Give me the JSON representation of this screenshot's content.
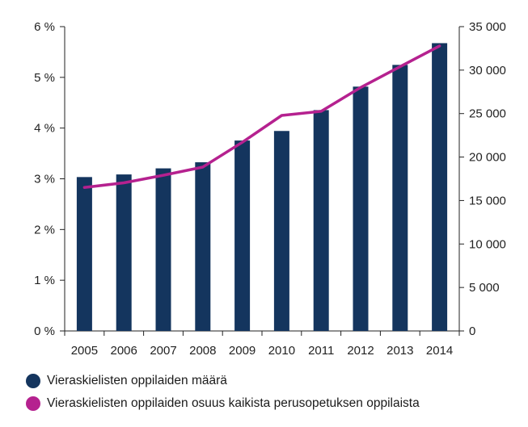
{
  "chart_data": {
    "type": "bar",
    "categories": [
      "2005",
      "2006",
      "2007",
      "2008",
      "2009",
      "2010",
      "2011",
      "2012",
      "2013",
      "2014"
    ],
    "series": [
      {
        "name": "Vieraskielisten oppilaiden määrä",
        "type": "bar",
        "axis": "right",
        "color": "#14355e",
        "values": [
          17700,
          18000,
          18700,
          19400,
          21900,
          23000,
          25400,
          28100,
          30600,
          33100
        ]
      },
      {
        "name": "Vieraskielisten oppilaiden osuus kaikista perusopetuksen oppilaista",
        "type": "line",
        "axis": "left",
        "color": "#b5218f",
        "values": [
          2.83,
          2.92,
          3.07,
          3.23,
          3.72,
          4.25,
          4.33,
          4.8,
          5.21,
          5.62
        ]
      }
    ],
    "left_axis": {
      "ylim": [
        0,
        6
      ],
      "ticks": [
        0,
        1,
        2,
        3,
        4,
        5,
        6
      ],
      "tick_labels": [
        "0 %",
        "1 %",
        "2 %",
        "3 %",
        "4 %",
        "5 %",
        "6 %"
      ]
    },
    "right_axis": {
      "ylim": [
        0,
        35000
      ],
      "ticks": [
        0,
        5000,
        10000,
        15000,
        20000,
        25000,
        30000,
        35000
      ],
      "tick_labels": [
        "0",
        "5 000",
        "10 000",
        "15 000",
        "20 000",
        "25 000",
        "30 000",
        "35 000"
      ]
    },
    "grid": false,
    "legend_position": "bottom-left",
    "legend": [
      {
        "label": "Vieraskielisten oppilaiden määrä",
        "color": "#14355e"
      },
      {
        "label": "Vieraskielisten oppilaiden osuus kaikista perusopetuksen oppilaista",
        "color": "#b5218f"
      }
    ]
  }
}
